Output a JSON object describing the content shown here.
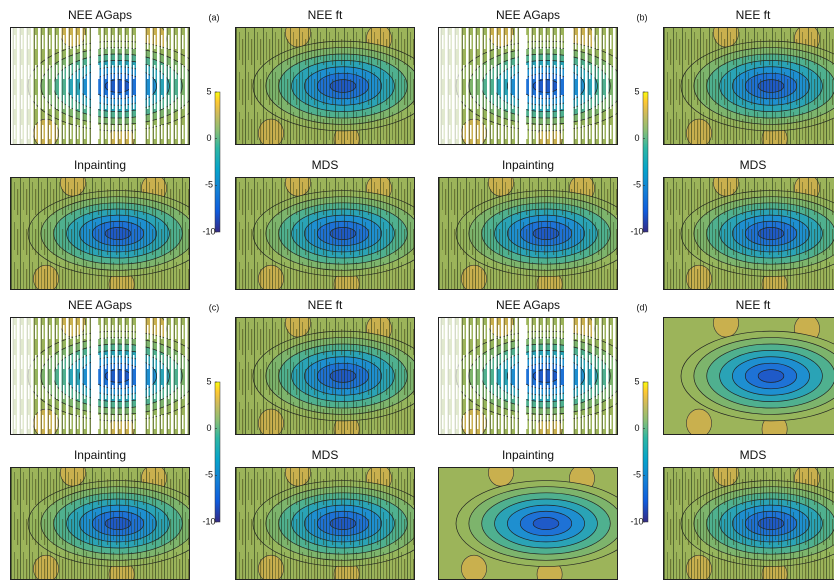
{
  "panels": [
    {
      "label": "(a)",
      "plots": [
        "NEE AGaps",
        "NEE ft",
        "Inpainting",
        "MDS"
      ],
      "colorbar_lim": [
        -10,
        5
      ],
      "colorbar_ticks": [
        5,
        0,
        -5,
        -10
      ]
    },
    {
      "label": "(b)",
      "plots": [
        "NEE AGaps",
        "NEE ft",
        "Inpainting",
        "MDS"
      ],
      "colorbar_lim": [
        -10,
        5
      ],
      "colorbar_ticks": [
        5,
        0,
        -5,
        -10
      ]
    },
    {
      "label": "(c)",
      "plots": [
        "NEE AGaps",
        "NEE ft",
        "Inpainting",
        "MDS"
      ],
      "colorbar_lim": [
        -10,
        5
      ],
      "colorbar_ticks": [
        5,
        0,
        -5,
        -10
      ]
    },
    {
      "label": "(d)",
      "plots": [
        "NEE AGaps",
        "NEE ft",
        "Inpainting",
        "MDS"
      ],
      "colorbar_lim": [
        -10,
        5
      ],
      "colorbar_ticks": [
        5,
        0,
        -5,
        -10
      ]
    }
  ]
}
